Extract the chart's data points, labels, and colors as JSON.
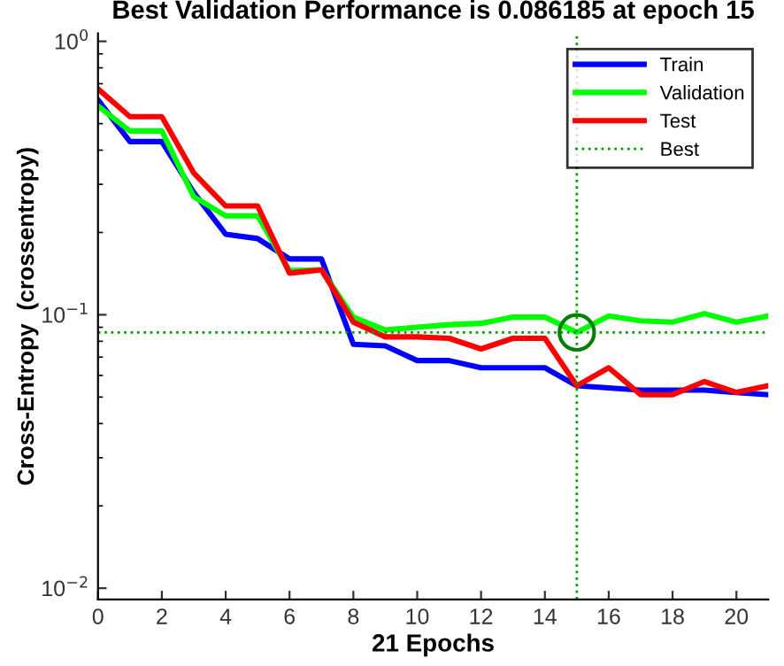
{
  "chart_data": {
    "type": "line",
    "title": "Best Validation Performance is 0.086185 at epoch 15",
    "xlabel": "21 Epochs",
    "ylabel": "Cross-Entropy  (crossentropy)",
    "x": [
      0,
      1,
      2,
      3,
      4,
      5,
      6,
      7,
      8,
      9,
      10,
      11,
      12,
      13,
      14,
      15,
      16,
      17,
      18,
      19,
      20,
      21
    ],
    "series": [
      {
        "name": "Train",
        "color": "#0000ff",
        "values": [
          0.61,
          0.43,
          0.43,
          0.28,
          0.197,
          0.19,
          0.16,
          0.16,
          0.078,
          0.077,
          0.068,
          0.068,
          0.064,
          0.064,
          0.064,
          0.055,
          0.054,
          0.053,
          0.053,
          0.053,
          0.052,
          0.051
        ]
      },
      {
        "name": "Validation",
        "color": "#00ff00",
        "values": [
          0.58,
          0.47,
          0.47,
          0.27,
          0.23,
          0.23,
          0.145,
          0.146,
          0.098,
          0.088,
          0.09,
          0.092,
          0.093,
          0.098,
          0.098,
          0.086185,
          0.099,
          0.095,
          0.094,
          0.101,
          0.094,
          0.099
        ]
      },
      {
        "name": "Test",
        "color": "#ff0000",
        "values": [
          0.67,
          0.53,
          0.53,
          0.33,
          0.25,
          0.25,
          0.142,
          0.146,
          0.094,
          0.083,
          0.083,
          0.082,
          0.075,
          0.082,
          0.082,
          0.055,
          0.064,
          0.051,
          0.051,
          0.057,
          0.052,
          0.055
        ]
      },
      {
        "type": "scatter",
        "marker": "circle",
        "color": "#008000",
        "x": [
          15
        ],
        "values": [
          0.086185
        ]
      }
    ],
    "ref_lines": [
      {
        "axis": "x",
        "value": 15,
        "label": "Best",
        "color": "#00a000",
        "line_style": "dotted"
      },
      {
        "axis": "y",
        "value": 0.086185,
        "color": "#00a000",
        "line_style": "dotted"
      }
    ],
    "log": "y",
    "xlim": [
      0,
      21
    ],
    "ylim": [
      0.0091,
      1.07
    ],
    "xticks": [
      0,
      2,
      4,
      6,
      8,
      10,
      12,
      14,
      16,
      18,
      20
    ],
    "yticks": [
      {
        "value": 0.01,
        "label": "10$^{−2}$"
      },
      {
        "value": 0.1,
        "label": "10$^{−1}$"
      },
      {
        "value": 1,
        "label": "10$^{0}$"
      }
    ],
    "legend": "top right",
    "grid": false
  }
}
